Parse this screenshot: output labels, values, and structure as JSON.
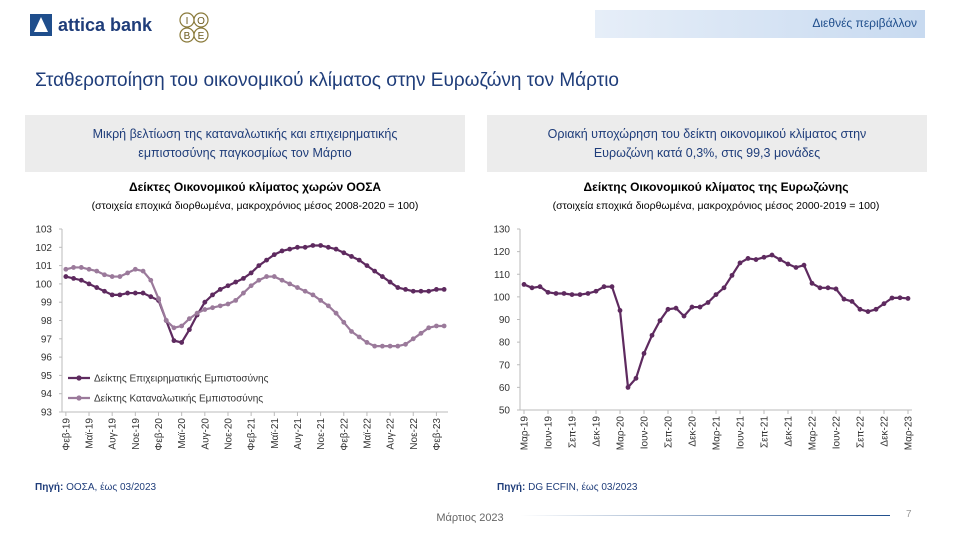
{
  "header": {
    "brand": "attica bank",
    "logo_letters": [
      "Ι",
      "Ο",
      "Β",
      "Ε"
    ],
    "section": "Διεθνές περιβάλλον"
  },
  "title": "Σταθεροποίηση του οικονομικού κλίματος στην Ευρωζώνη τον Μάρτιο",
  "panels": [
    {
      "heading": "Μικρή βελτίωση της καταναλωτικής και επιχειρηματικής εμπιστοσύνης παγκοσμίως τον Μάρτιο",
      "source_label": "Πηγή:",
      "source": "ΟΟΣΑ, έως 03/2023"
    },
    {
      "heading": "Οριακή υποχώρηση του δείκτη οικονομικού κλίματος στην Ευρωζώνη κατά 0,3%, στις 99,3 μονάδες",
      "source_label": "Πηγή:",
      "source": "DG ECFIN, έως 03/2023"
    }
  ],
  "chart_data": [
    {
      "type": "line",
      "title": "Δείκτες Οικονομικού κλίματος χωρών ΟΟΣΑ",
      "subtitle": "(στοιχεία εποχικά διορθωμένα, μακροχρόνιος μέσος 2008-2020 = 100)",
      "categories": [
        "Φεβ-19",
        null,
        null,
        "Μαϊ-19",
        null,
        null,
        "Αυγ-19",
        null,
        null,
        "Νοε-19",
        null,
        null,
        "Φεβ-20",
        null,
        null,
        "Μαϊ-20",
        null,
        null,
        "Αυγ-20",
        null,
        null,
        "Νοε-20",
        null,
        null,
        "Φεβ-21",
        null,
        null,
        "Μαϊ-21",
        null,
        null,
        "Αυγ-21",
        null,
        null,
        "Νοε-21",
        null,
        null,
        "Φεβ-22",
        null,
        null,
        "Μαϊ-22",
        null,
        null,
        "Αυγ-22",
        null,
        null,
        "Νοε-22",
        null,
        null,
        "Φεβ-23",
        null
      ],
      "series": [
        {
          "name": "Δείκτης Επιχειρηματικής Εμπιστοσύνης",
          "color": "#5e2a5f",
          "values": [
            100.4,
            100.3,
            100.2,
            100.0,
            99.8,
            99.6,
            99.4,
            99.4,
            99.5,
            99.5,
            99.5,
            99.3,
            99.1,
            98.0,
            96.9,
            96.8,
            97.5,
            98.3,
            99.0,
            99.4,
            99.7,
            99.9,
            100.1,
            100.3,
            100.6,
            101.0,
            101.3,
            101.6,
            101.8,
            101.9,
            102.0,
            102.0,
            102.1,
            102.1,
            102.0,
            101.9,
            101.7,
            101.5,
            101.3,
            101.0,
            100.7,
            100.4,
            100.1,
            99.8,
            99.7,
            99.6,
            99.6,
            99.6,
            99.7,
            99.7
          ]
        },
        {
          "name": "Δείκτης Καταναλωτικής Εμπιστοσύνης",
          "color": "#9b7a9b",
          "values": [
            100.8,
            100.9,
            100.9,
            100.8,
            100.7,
            100.5,
            100.4,
            100.4,
            100.6,
            100.8,
            100.7,
            100.2,
            99.2,
            98.0,
            97.6,
            97.7,
            98.1,
            98.4,
            98.6,
            98.7,
            98.8,
            98.9,
            99.1,
            99.5,
            99.9,
            100.2,
            100.4,
            100.4,
            100.2,
            100.0,
            99.8,
            99.6,
            99.4,
            99.1,
            98.8,
            98.4,
            97.9,
            97.4,
            97.1,
            96.8,
            96.6,
            96.6,
            96.6,
            96.6,
            96.7,
            97.0,
            97.3,
            97.6,
            97.7,
            97.7
          ]
        }
      ],
      "ylim": [
        93,
        103
      ],
      "yticks": [
        93,
        94,
        95,
        96,
        97,
        98,
        99,
        100,
        101,
        102,
        103
      ],
      "grid": false,
      "legend": "lower left"
    },
    {
      "type": "line",
      "title": "Δείκτης Οικονομικού κλίματος της Ευρωζώνης",
      "subtitle": "(στοιχεία εποχικά διορθωμένα, μακροχρόνιος μέσος 2000-2019 = 100)",
      "categories": [
        "Μαρ-19",
        null,
        null,
        "Ιουν-19",
        null,
        null,
        "Σεπ-19",
        null,
        null,
        "Δεκ-19",
        null,
        null,
        "Μαρ-20",
        null,
        null,
        "Ιουν-20",
        null,
        null,
        "Σεπ-20",
        null,
        null,
        "Δεκ-20",
        null,
        null,
        "Μαρ-21",
        null,
        null,
        "Ιουν-21",
        null,
        null,
        "Σεπ-21",
        null,
        null,
        "Δεκ-21",
        null,
        null,
        "Μαρ-22",
        null,
        null,
        "Ιουν-22",
        null,
        null,
        "Σεπ-22",
        null,
        null,
        "Δεκ-22",
        null,
        null,
        "Μαρ-23"
      ],
      "series": [
        {
          "name": null,
          "color": "#5e2a5f",
          "values": [
            105.5,
            104,
            104.5,
            102,
            101.5,
            101.5,
            101,
            101,
            101.5,
            102.5,
            104.5,
            104.5,
            94,
            60,
            64,
            75,
            83,
            89.5,
            94.5,
            95,
            91.5,
            95.5,
            95.5,
            97.5,
            101,
            104,
            109.5,
            115,
            117,
            116.5,
            117.5,
            118.5,
            116.5,
            114.5,
            113,
            114,
            106,
            104,
            104,
            103.5,
            99,
            98,
            94.5,
            93.5,
            94.5,
            97,
            99.5,
            99.6,
            99.3
          ]
        }
      ],
      "ylim": [
        50,
        130
      ],
      "yticks": [
        50,
        60,
        70,
        80,
        90,
        100,
        110,
        120,
        130
      ],
      "grid": false
    }
  ],
  "footer": {
    "date": "Μάρτιος 2023",
    "page": "7"
  }
}
